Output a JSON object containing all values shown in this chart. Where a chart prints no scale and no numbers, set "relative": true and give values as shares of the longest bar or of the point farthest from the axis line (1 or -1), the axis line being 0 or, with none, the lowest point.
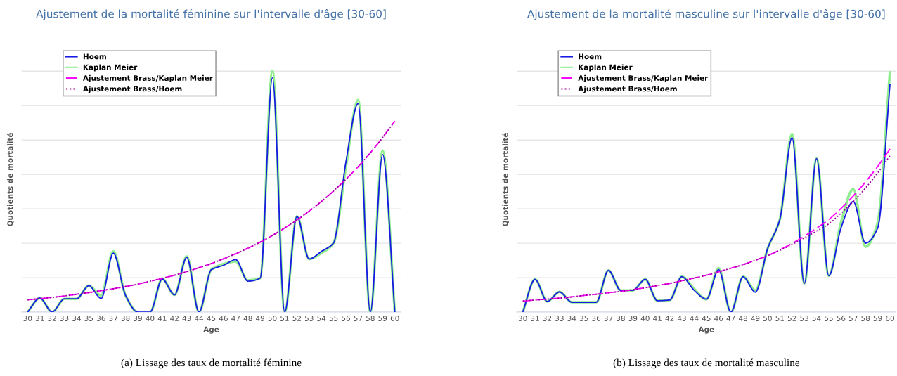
{
  "chart_data": [
    {
      "type": "line",
      "title": "Ajustement de la mortalité féminine sur l'intervalle d'âge [30-60]",
      "xlabel": "Age",
      "ylabel": "Quotients de mortalité",
      "relative": true,
      "grid": "y",
      "legend": "top left",
      "annotations": [
        "(a) Lissage des taux de mortalité féminine"
      ],
      "categories": [
        "30",
        "31",
        "32",
        "33",
        "34",
        "35",
        "36",
        "37",
        "38",
        "39",
        "40",
        "41",
        "42",
        "43",
        "44",
        "45",
        "46",
        "47",
        "48",
        "49",
        "50",
        "51",
        "52",
        "53",
        "54",
        "55",
        "56",
        "57",
        "58",
        "59",
        "60"
      ],
      "series": [
        {
          "name": "Hoem",
          "color": "#1a1ae6",
          "line_style": "solid",
          "values": [
            0,
            0.059,
            0,
            0.055,
            0.055,
            0.11,
            0.056,
            0.245,
            0.069,
            0,
            0,
            0.138,
            0.071,
            0.227,
            0,
            0.176,
            0.194,
            0.218,
            0.128,
            0.141,
            0.973,
            0,
            0.397,
            0.22,
            0.252,
            0.287,
            0.622,
            0.865,
            0,
            0.654,
            0
          ]
        },
        {
          "name": "Kaplan Meier",
          "color": "#90ee90",
          "line_style": "solid",
          "values": [
            0,
            0.059,
            0,
            0.055,
            0.055,
            0.11,
            0.069,
            0.252,
            0.069,
            0,
            0,
            0.138,
            0.071,
            0.231,
            0,
            0.176,
            0.199,
            0.21,
            0.131,
            0.141,
            1,
            0,
            0.397,
            0.22,
            0.245,
            0.287,
            0.601,
            0.88,
            0,
            0.67,
            0
          ]
        },
        {
          "name": "Ajustement Brass/Kaplan Meier",
          "color": "#ff00ff",
          "line_style": "dashed",
          "values": [
            0.051,
            0.056,
            0.061,
            0.067,
            0.074,
            0.081,
            0.089,
            0.097,
            0.106,
            0.116,
            0.128,
            0.14,
            0.153,
            0.168,
            0.184,
            0.201,
            0.221,
            0.242,
            0.265,
            0.29,
            0.318,
            0.349,
            0.382,
            0.419,
            0.459,
            0.503,
            0.551,
            0.603,
            0.661,
            0.724,
            0.793
          ]
        },
        {
          "name": "Ajustement Brass/Hoem",
          "color": "#990099",
          "line_style": "dotted",
          "values": [
            0.051,
            0.056,
            0.061,
            0.067,
            0.074,
            0.081,
            0.089,
            0.097,
            0.106,
            0.116,
            0.128,
            0.14,
            0.153,
            0.168,
            0.184,
            0.201,
            0.221,
            0.242,
            0.265,
            0.29,
            0.318,
            0.349,
            0.382,
            0.419,
            0.459,
            0.503,
            0.551,
            0.603,
            0.661,
            0.724,
            0.793
          ]
        }
      ]
    },
    {
      "type": "line",
      "title": "Ajustement de la mortalité masculine sur l'intervalle d'âge [30-60]",
      "xlabel": "Age",
      "ylabel": "Quotients de mortalité",
      "relative": true,
      "grid": "y",
      "legend": "top left",
      "annotations": [
        "(b) Lissage des taux de mortalité masculine"
      ],
      "categories": [
        "30",
        "31",
        "32",
        "33",
        "34",
        "35",
        "36",
        "37",
        "38",
        "39",
        "40",
        "41",
        "42",
        "43",
        "44",
        "45",
        "46",
        "47",
        "48",
        "49",
        "50",
        "51",
        "52",
        "53",
        "54",
        "55",
        "56",
        "57",
        "58",
        "59",
        "60"
      ],
      "series": [
        {
          "name": "Hoem",
          "color": "#1a1ae6",
          "line_style": "solid",
          "values": [
            0,
            0.136,
            0.044,
            0.084,
            0.041,
            0.041,
            0.041,
            0.173,
            0.09,
            0.09,
            0.136,
            0.047,
            0.05,
            0.147,
            0.09,
            0.053,
            0.176,
            0,
            0.147,
            0.082,
            0.263,
            0.384,
            0.724,
            0.119,
            0.637,
            0.151,
            0.349,
            0.459,
            0.286,
            0.349,
            0.946
          ]
        },
        {
          "name": "Kaplan Meier",
          "color": "#90ee90",
          "line_style": "solid",
          "values": [
            0,
            0.136,
            0.044,
            0.084,
            0.041,
            0.041,
            0.041,
            0.173,
            0.09,
            0.09,
            0.136,
            0.047,
            0.05,
            0.147,
            0.096,
            0.053,
            0.182,
            0,
            0.147,
            0.09,
            0.263,
            0.384,
            0.739,
            0.119,
            0.637,
            0.151,
            0.372,
            0.51,
            0.271,
            0.372,
            1
          ]
        },
        {
          "name": "Ajustement Brass/Kaplan Meier",
          "color": "#ff00ff",
          "line_style": "dashed",
          "values": [
            0.046,
            0.05,
            0.054,
            0.058,
            0.063,
            0.069,
            0.074,
            0.08,
            0.086,
            0.093,
            0.101,
            0.11,
            0.119,
            0.13,
            0.141,
            0.153,
            0.167,
            0.182,
            0.197,
            0.215,
            0.234,
            0.258,
            0.285,
            0.315,
            0.348,
            0.384,
            0.43,
            0.482,
            0.54,
            0.605,
            0.677
          ]
        },
        {
          "name": "Ajustement Brass/Hoem",
          "color": "#990099",
          "line_style": "dotted",
          "values": [
            0.046,
            0.05,
            0.054,
            0.058,
            0.063,
            0.069,
            0.074,
            0.08,
            0.086,
            0.093,
            0.101,
            0.11,
            0.119,
            0.13,
            0.141,
            0.153,
            0.167,
            0.182,
            0.197,
            0.215,
            0.234,
            0.256,
            0.281,
            0.308,
            0.336,
            0.366,
            0.41,
            0.459,
            0.515,
            0.578,
            0.649
          ]
        }
      ]
    }
  ]
}
